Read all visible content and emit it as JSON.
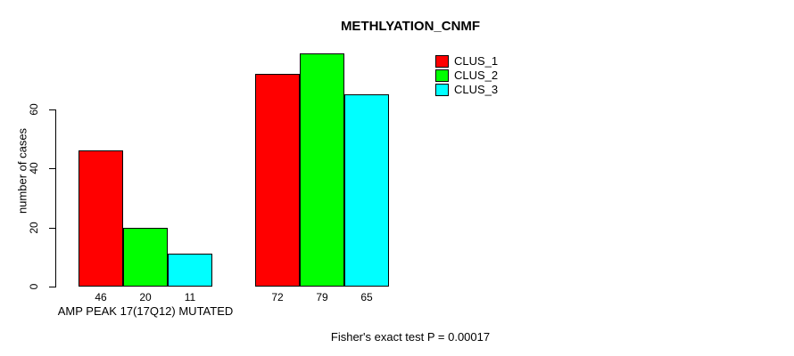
{
  "chart_data": {
    "type": "bar",
    "title": "METHLYATION_CNMF",
    "ylabel": "number of cases",
    "xlabel": "",
    "yticks": [
      0,
      20,
      40,
      60
    ],
    "ylim": [
      0,
      80
    ],
    "grid": false,
    "legend_position": "top-right",
    "series": [
      {
        "name": "CLUS_1",
        "color": "#FF0000"
      },
      {
        "name": "CLUS_2",
        "color": "#00FF00"
      },
      {
        "name": "CLUS_3",
        "color": "#00FFFF"
      }
    ],
    "groups": [
      {
        "label": "AMP PEAK 17(17Q12) MUTATED",
        "values": [
          46,
          20,
          11
        ]
      },
      {
        "label": "",
        "values": [
          72,
          79,
          65
        ]
      }
    ],
    "bar_border_color": "#000000",
    "annotation": "Fisher's exact test P = 0.00017"
  }
}
